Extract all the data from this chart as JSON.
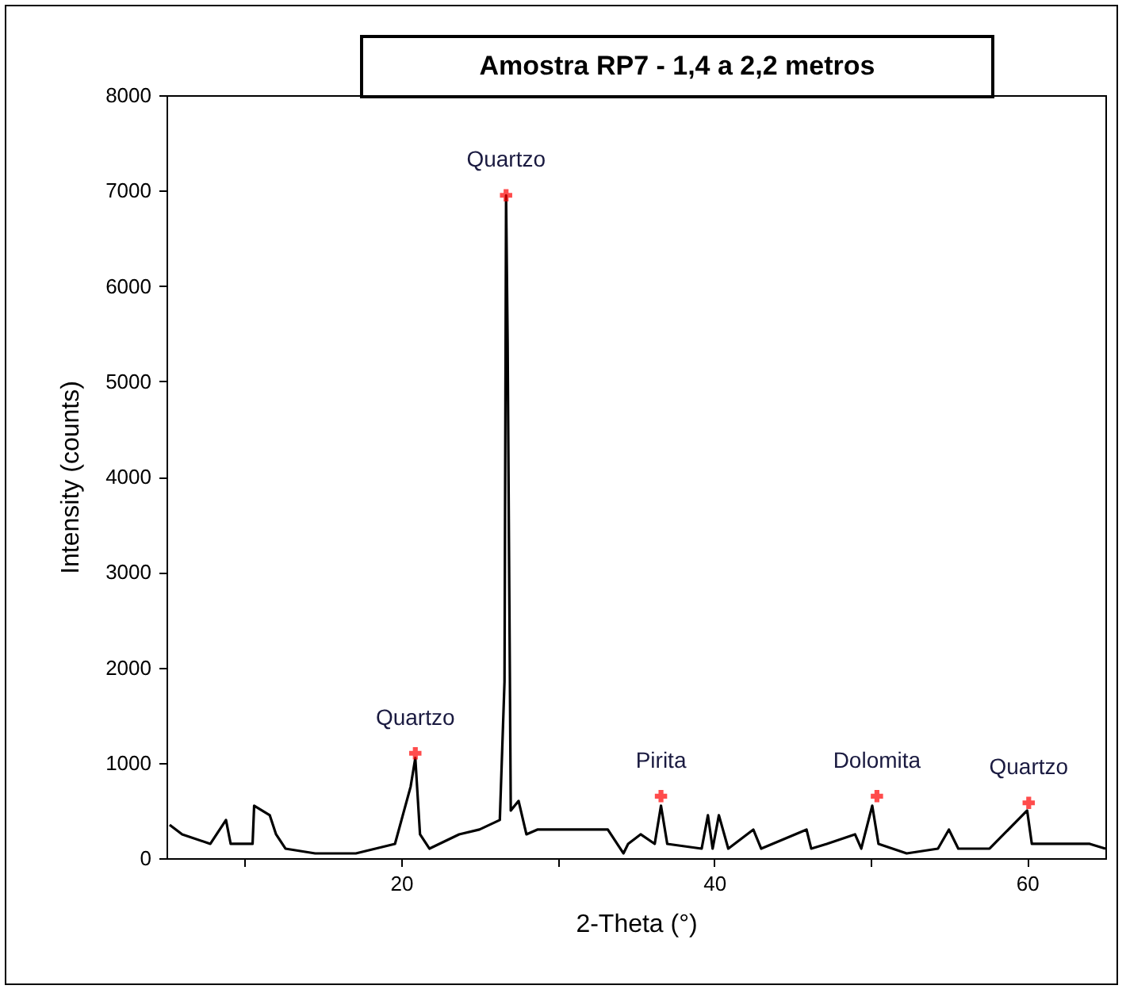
{
  "chart_data": {
    "type": "line",
    "title": "Amostra RP7 - 1,4 a 2,2 metros",
    "xlabel": "2-Theta (°)",
    "ylabel": "Intensity (counts)",
    "xlim": [
      5,
      65
    ],
    "xticks": [
      {
        "value": 10,
        "label": null
      },
      20,
      {
        "value": 30,
        "label": null
      },
      40,
      {
        "value": 50,
        "label": null
      },
      60
    ],
    "ylim": [
      0,
      8000
    ],
    "yticks": [
      0,
      1000,
      2000,
      3000,
      4000,
      5000,
      6000,
      7000,
      8000
    ],
    "grid": false,
    "legend": false,
    "marker": "none",
    "line_style": "solid",
    "series": [
      {
        "color": "#000000",
        "x": [
          5.2,
          6.0,
          7.8,
          8.8,
          9.1,
          10.5,
          10.6,
          11.6,
          12.0,
          12.6,
          14.5,
          17.1,
          19.6,
          20.6,
          20.9,
          21.2,
          21.8,
          23.7,
          25.0,
          26.3,
          26.6,
          26.7,
          26.8,
          27.0,
          27.5,
          28.0,
          28.7,
          30.9,
          33.2,
          34.2,
          34.5,
          35.3,
          36.2,
          36.6,
          37.0,
          39.2,
          39.6,
          39.9,
          40.3,
          40.9,
          42.5,
          43.0,
          45.9,
          46.2,
          47.2,
          49.0,
          49.4,
          50.1,
          50.5,
          52.3,
          54.3,
          55.0,
          55.6,
          57.6,
          60.0,
          60.3,
          64.0,
          65.0
        ],
        "values": [
          350,
          250,
          150,
          400,
          150,
          150,
          550,
          450,
          250,
          100,
          50,
          50,
          150,
          750,
          1050,
          250,
          100,
          250,
          300,
          400,
          1850,
          6950,
          5400,
          500,
          600,
          250,
          300,
          300,
          300,
          50,
          150,
          250,
          150,
          550,
          150,
          100,
          450,
          100,
          450,
          100,
          300,
          100,
          300,
          100,
          150,
          250,
          100,
          550,
          150,
          50,
          100,
          300,
          100,
          100,
          500,
          150,
          150,
          100
        ]
      }
    ],
    "annotations": [
      {
        "text": "Quartzo",
        "x": 20.9,
        "y": 1100
      },
      {
        "text": "Quartzo",
        "x": 26.7,
        "y": 6950
      },
      {
        "text": "Pirita",
        "x": 36.6,
        "y": 650
      },
      {
        "text": "Dolomita",
        "x": 50.4,
        "y": 650
      },
      {
        "text": "Quartzo",
        "x": 60.1,
        "y": 580
      }
    ]
  }
}
